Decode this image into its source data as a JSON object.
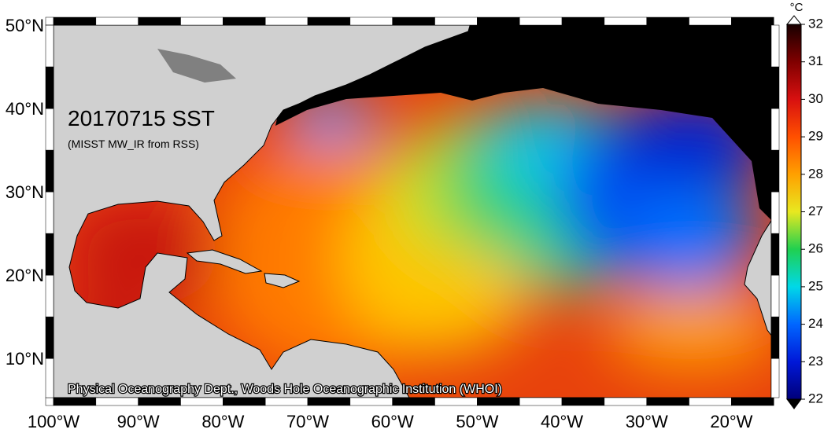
{
  "map": {
    "title": "20170715 SST",
    "subtitle": "(MISST MW_IR from RSS)",
    "credit": "Physical Oceanography Dept., Woods Hole Oceanographic Institution (WHOI)",
    "xlim": [
      -100,
      -15.3
    ],
    "ylim": [
      5.3,
      50
    ],
    "xticks": [
      {
        "value": -100,
        "label": "100°W"
      },
      {
        "value": -90,
        "label": "90°W"
      },
      {
        "value": -80,
        "label": "80°W"
      },
      {
        "value": -70,
        "label": "70°W"
      },
      {
        "value": -60,
        "label": "60°W"
      },
      {
        "value": -50,
        "label": "50°W"
      },
      {
        "value": -40,
        "label": "40°W"
      },
      {
        "value": -30,
        "label": "30°W"
      },
      {
        "value": -20,
        "label": "20°W"
      }
    ],
    "yticks": [
      {
        "value": 10,
        "label": "10°N"
      },
      {
        "value": 20,
        "label": "20°N"
      },
      {
        "value": 30,
        "label": "30°N"
      },
      {
        "value": 40,
        "label": "40°N"
      },
      {
        "value": 50,
        "label": "50°N"
      }
    ],
    "colorbar": {
      "unit": "°C",
      "lim": [
        22,
        32
      ],
      "ticks": [
        22,
        23,
        24,
        25,
        26,
        27,
        28,
        29,
        30,
        31,
        32
      ]
    }
  }
}
